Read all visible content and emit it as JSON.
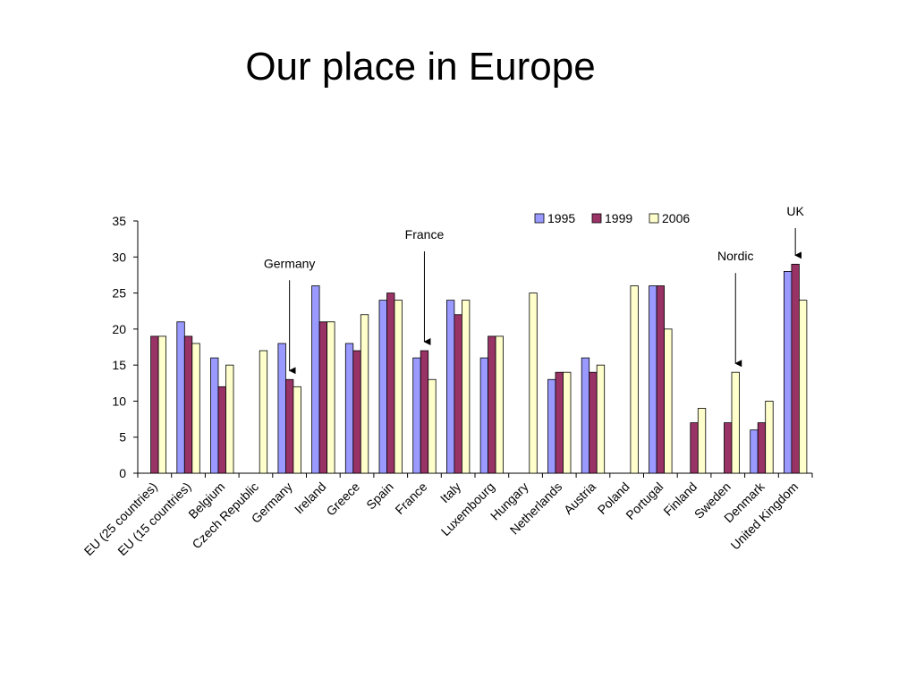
{
  "slide": {
    "title": "Our place in Europe"
  },
  "chart_data": {
    "type": "bar",
    "title": "",
    "xlabel": "",
    "ylabel": "",
    "ylim": [
      0,
      35
    ],
    "yticks": [
      0,
      5,
      10,
      15,
      20,
      25,
      30,
      35
    ],
    "grid": false,
    "legend_position": "top-right",
    "categories": [
      "EU (25 countries)",
      "EU (15 countries)",
      "Belgium",
      "Czech Republic",
      "Germany",
      "Ireland",
      "Greece",
      "Spain",
      "France",
      "Italy",
      "Luxembourg",
      "Hungary",
      "Netherlands",
      "Austria",
      "Poland",
      "Portugal",
      "Finland",
      "Sweden",
      "Denmark",
      "United Kingdom"
    ],
    "series": [
      {
        "name": "1995",
        "color": "#9999ff",
        "values": [
          null,
          21,
          16,
          null,
          18,
          26,
          18,
          24,
          16,
          24,
          16,
          null,
          13,
          16,
          null,
          26,
          null,
          null,
          6,
          28
        ]
      },
      {
        "name": "1999",
        "color": "#993366",
        "values": [
          19,
          19,
          12,
          null,
          13,
          21,
          17,
          25,
          17,
          22,
          19,
          null,
          14,
          14,
          null,
          26,
          7,
          7,
          7,
          29
        ]
      },
      {
        "name": "2006",
        "color": "#ffffcc",
        "values": [
          19,
          18,
          15,
          17,
          12,
          21,
          22,
          24,
          13,
          24,
          19,
          25,
          14,
          15,
          26,
          20,
          9,
          14,
          10,
          24
        ]
      }
    ],
    "annotations": [
      {
        "text": "Germany",
        "category": "Germany",
        "series": "1999"
      },
      {
        "text": "France",
        "category": "France",
        "series": "1999"
      },
      {
        "text": "Nordic",
        "category": "Sweden",
        "series": "2006"
      },
      {
        "text": "UK",
        "category": "United Kingdom",
        "series": "1999"
      }
    ]
  }
}
